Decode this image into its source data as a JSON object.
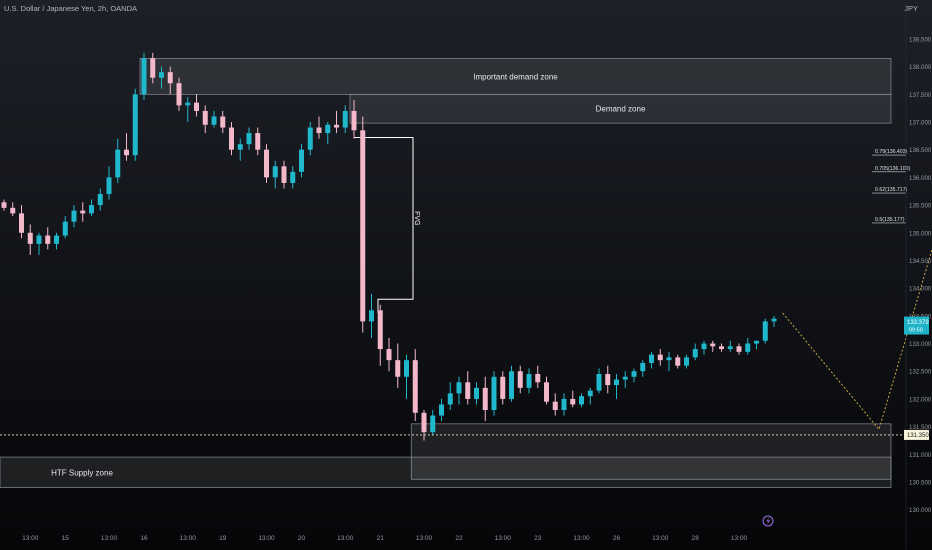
{
  "header": {
    "symbol": "U.S. Dollar / Japanese Yen, 2h, OANDA",
    "currency": "JPY"
  },
  "colors": {
    "bull": "#20b8cc",
    "bear": "#f4b8cb",
    "zone_fill": "#ffffff",
    "projection": "#e0b84a",
    "price_line": "#e8e4c0",
    "current_label_bg": "#1fb3c8"
  },
  "chart_data": {
    "type": "candlestick",
    "timeframe": "2h",
    "ylim": [
      129.85,
      138.95
    ],
    "y_ticks": [
      "138.500",
      "138.000",
      "137.500",
      "137.000",
      "136.500",
      "136.000",
      "135.500",
      "135.000",
      "134.500",
      "134.000",
      "133.500",
      "133.000",
      "132.500",
      "132.000",
      "131.500",
      "131.000",
      "130.500",
      "130.000"
    ],
    "x_labels": [
      {
        "label": "13:00",
        "i": 3
      },
      {
        "label": "15",
        "i": 7
      },
      {
        "label": "13:00",
        "i": 12
      },
      {
        "label": "16",
        "i": 16
      },
      {
        "label": "13:00",
        "i": 21
      },
      {
        "label": "19",
        "i": 25
      },
      {
        "label": "13:00",
        "i": 30
      },
      {
        "label": "20",
        "i": 34
      },
      {
        "label": "13:00",
        "i": 39
      },
      {
        "label": "21",
        "i": 43
      },
      {
        "label": "13:00",
        "i": 48
      },
      {
        "label": "22",
        "i": 52
      },
      {
        "label": "13:00",
        "i": 57
      },
      {
        "label": "23",
        "i": 61
      },
      {
        "label": "13:00",
        "i": 66
      },
      {
        "label": "26",
        "i": 70
      },
      {
        "label": "13:00",
        "i": 75
      },
      {
        "label": "28",
        "i": 79
      },
      {
        "label": "13:00",
        "i": 84
      }
    ],
    "candles": [
      [
        135.55,
        135.6,
        135.4,
        135.45
      ],
      [
        135.45,
        135.55,
        135.3,
        135.35
      ],
      [
        135.35,
        135.5,
        134.9,
        135.0
      ],
      [
        135.0,
        135.15,
        134.6,
        134.8
      ],
      [
        134.8,
        135.0,
        134.6,
        134.95
      ],
      [
        134.95,
        135.1,
        134.7,
        134.8
      ],
      [
        134.8,
        135.0,
        134.7,
        134.95
      ],
      [
        134.95,
        135.3,
        134.9,
        135.2
      ],
      [
        135.2,
        135.5,
        135.1,
        135.4
      ],
      [
        135.4,
        135.55,
        135.2,
        135.35
      ],
      [
        135.35,
        135.6,
        135.3,
        135.5
      ],
      [
        135.5,
        135.8,
        135.4,
        135.7
      ],
      [
        135.7,
        136.2,
        135.6,
        136.0
      ],
      [
        136.0,
        136.7,
        135.9,
        136.5
      ],
      [
        136.5,
        136.8,
        136.3,
        136.4
      ],
      [
        136.4,
        137.6,
        136.3,
        137.5
      ],
      [
        137.5,
        138.25,
        137.4,
        138.15
      ],
      [
        138.15,
        138.25,
        137.7,
        137.8
      ],
      [
        137.8,
        138.0,
        137.6,
        137.9
      ],
      [
        137.9,
        138.0,
        137.5,
        137.7
      ],
      [
        137.7,
        137.8,
        137.2,
        137.3
      ],
      [
        137.3,
        137.45,
        137.0,
        137.35
      ],
      [
        137.35,
        137.5,
        137.1,
        137.2
      ],
      [
        137.2,
        137.3,
        136.8,
        136.95
      ],
      [
        136.95,
        137.2,
        136.9,
        137.1
      ],
      [
        137.1,
        137.2,
        136.8,
        136.9
      ],
      [
        136.9,
        137.0,
        136.4,
        136.5
      ],
      [
        136.5,
        136.7,
        136.3,
        136.6
      ],
      [
        136.6,
        136.9,
        136.5,
        136.8
      ],
      [
        136.8,
        136.9,
        136.4,
        136.5
      ],
      [
        136.5,
        136.6,
        135.9,
        136.0
      ],
      [
        136.0,
        136.3,
        135.8,
        136.2
      ],
      [
        136.2,
        136.3,
        135.8,
        135.9
      ],
      [
        135.9,
        136.2,
        135.8,
        136.1
      ],
      [
        136.1,
        136.6,
        136.0,
        136.5
      ],
      [
        136.5,
        137.0,
        136.4,
        136.9
      ],
      [
        136.9,
        137.1,
        136.7,
        136.8
      ],
      [
        136.8,
        137.0,
        136.6,
        136.95
      ],
      [
        136.95,
        137.2,
        136.8,
        136.9
      ],
      [
        136.9,
        137.3,
        136.8,
        137.2
      ],
      [
        137.2,
        137.4,
        136.7,
        136.85
      ],
      [
        136.85,
        137.1,
        133.2,
        133.4
      ],
      [
        133.4,
        133.9,
        133.1,
        133.6
      ],
      [
        133.6,
        133.7,
        132.6,
        132.9
      ],
      [
        132.9,
        133.1,
        132.5,
        132.7
      ],
      [
        132.7,
        133.0,
        132.2,
        132.4
      ],
      [
        132.4,
        132.8,
        132.0,
        132.7
      ],
      [
        132.7,
        132.9,
        131.6,
        131.75
      ],
      [
        131.75,
        131.8,
        131.25,
        131.4
      ],
      [
        131.4,
        131.8,
        131.35,
        131.7
      ],
      [
        131.7,
        132.0,
        131.6,
        131.9
      ],
      [
        131.9,
        132.3,
        131.8,
        132.1
      ],
      [
        132.1,
        132.4,
        131.9,
        132.3
      ],
      [
        132.3,
        132.5,
        131.9,
        132.0
      ],
      [
        132.0,
        132.3,
        131.9,
        132.2
      ],
      [
        132.2,
        132.4,
        131.6,
        131.8
      ],
      [
        131.8,
        132.5,
        131.7,
        132.4
      ],
      [
        132.4,
        132.5,
        131.9,
        132.0
      ],
      [
        132.0,
        132.6,
        131.95,
        132.5
      ],
      [
        132.5,
        132.6,
        132.1,
        132.2
      ],
      [
        132.2,
        132.55,
        132.1,
        132.45
      ],
      [
        132.45,
        132.6,
        132.2,
        132.3
      ],
      [
        132.3,
        132.4,
        131.9,
        131.95
      ],
      [
        131.95,
        132.1,
        131.7,
        131.8
      ],
      [
        131.8,
        132.1,
        131.7,
        132.0
      ],
      [
        132.0,
        132.15,
        131.85,
        131.9
      ],
      [
        131.9,
        132.1,
        131.85,
        132.05
      ],
      [
        132.05,
        132.2,
        131.9,
        132.15
      ],
      [
        132.15,
        132.55,
        132.1,
        132.45
      ],
      [
        132.45,
        132.6,
        132.1,
        132.25
      ],
      [
        132.25,
        132.45,
        132.0,
        132.35
      ],
      [
        132.35,
        132.5,
        132.2,
        132.4
      ],
      [
        132.4,
        132.55,
        132.3,
        132.5
      ],
      [
        132.5,
        132.7,
        132.4,
        132.65
      ],
      [
        132.65,
        132.85,
        132.55,
        132.8
      ],
      [
        132.8,
        132.9,
        132.6,
        132.7
      ],
      [
        132.7,
        132.85,
        132.5,
        132.75
      ],
      [
        132.75,
        132.8,
        132.55,
        132.6
      ],
      [
        132.6,
        132.8,
        132.55,
        132.75
      ],
      [
        132.75,
        133.0,
        132.7,
        132.9
      ],
      [
        132.9,
        133.05,
        132.8,
        133.0
      ],
      [
        133.0,
        133.05,
        132.85,
        132.95
      ],
      [
        132.95,
        133.0,
        132.85,
        132.9
      ],
      [
        132.9,
        133.05,
        132.85,
        132.95
      ],
      [
        132.95,
        133.0,
        132.8,
        132.85
      ],
      [
        132.85,
        133.1,
        132.8,
        133.0
      ],
      [
        133.0,
        133.05,
        132.9,
        133.05
      ],
      [
        133.05,
        133.45,
        133.0,
        133.4
      ],
      [
        133.4,
        133.5,
        133.3,
        133.45
      ]
    ],
    "zones": [
      {
        "label": "Important demand zone",
        "top": 138.15,
        "bottom": 137.5,
        "i_start": 16,
        "i_end": "edge"
      },
      {
        "label": "Demand zone",
        "top": 137.5,
        "bottom": 136.98,
        "i_start": 40,
        "i_end": "edge"
      },
      {
        "label": "",
        "top": 131.55,
        "bottom": 130.55,
        "i_start": 47,
        "i_end": "edge"
      },
      {
        "label": "HTF Supply zone",
        "top": 130.95,
        "bottom": 130.4,
        "i_start": 0,
        "i_end": "edge"
      }
    ],
    "fvg": {
      "label": "FVG",
      "top": 136.72,
      "bottom": 133.8
    },
    "fib_levels": [
      {
        "label": "0.79(136.403)",
        "value": 136.403
      },
      {
        "label": "0.705(136.100)",
        "value": 136.1
      },
      {
        "label": "0.62(135.717)",
        "value": 135.717
      },
      {
        "label": "0.5(135.177)",
        "value": 135.177
      }
    ],
    "current_price": {
      "value": "133.379",
      "countdown": "09:50",
      "price": 133.379
    },
    "dotted_price": {
      "value": "131.350",
      "price": 131.35
    },
    "projection": [
      {
        "i": 89,
        "price": 133.55
      },
      {
        "i": 100,
        "price": 131.45
      },
      {
        "i": 107,
        "price": 135.2
      }
    ],
    "marker_icon": "lightning-icon"
  }
}
